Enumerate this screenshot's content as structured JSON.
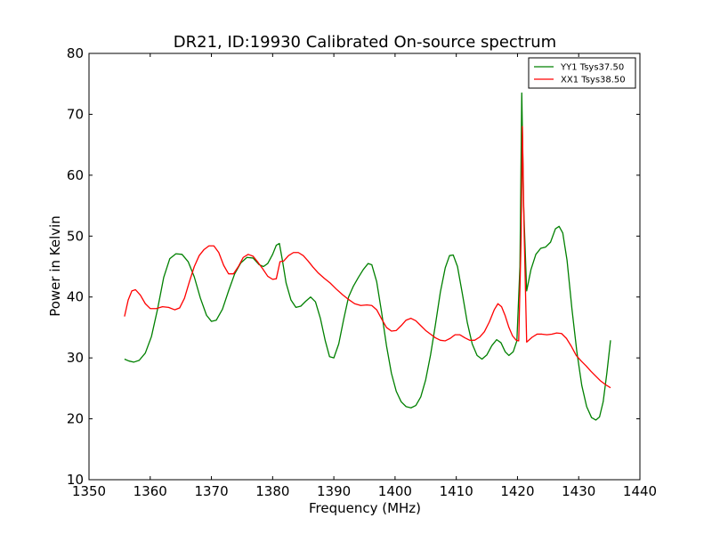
{
  "chart_data": {
    "type": "line",
    "title": "DR21, ID:19930 Calibrated On-source spectrum",
    "xlabel": "Frequency (MHz)",
    "ylabel": "Power in Kelvin",
    "xlim": [
      1350,
      1440
    ],
    "ylim": [
      10,
      80
    ],
    "xticks": [
      1350,
      1360,
      1370,
      1380,
      1390,
      1400,
      1410,
      1420,
      1430,
      1440
    ],
    "yticks": [
      10,
      20,
      30,
      40,
      50,
      60,
      70,
      80
    ],
    "grid": false,
    "legend_position": "top-right",
    "series": [
      {
        "name": "YY1 Tsys37.50",
        "color": "#008000",
        "points": [
          [
            1355.8,
            29.8
          ],
          [
            1356.5,
            29.5
          ],
          [
            1357.3,
            29.3
          ],
          [
            1358.2,
            29.6
          ],
          [
            1359.2,
            30.8
          ],
          [
            1360.2,
            33.5
          ],
          [
            1361.2,
            38.0
          ],
          [
            1362.2,
            43.2
          ],
          [
            1363.2,
            46.3
          ],
          [
            1364.2,
            47.1
          ],
          [
            1365.2,
            47.0
          ],
          [
            1366.2,
            45.8
          ],
          [
            1367.2,
            43.3
          ],
          [
            1368.2,
            39.8
          ],
          [
            1369.2,
            37.0
          ],
          [
            1370.0,
            36.0
          ],
          [
            1370.8,
            36.2
          ],
          [
            1371.8,
            38.0
          ],
          [
            1372.8,
            41.0
          ],
          [
            1373.8,
            43.8
          ],
          [
            1374.8,
            45.6
          ],
          [
            1375.8,
            46.5
          ],
          [
            1376.8,
            46.4
          ],
          [
            1377.8,
            45.3
          ],
          [
            1378.5,
            45.0
          ],
          [
            1379.2,
            45.5
          ],
          [
            1380.0,
            47.0
          ],
          [
            1380.6,
            48.5
          ],
          [
            1381.1,
            48.8
          ],
          [
            1381.6,
            46.0
          ],
          [
            1382.2,
            42.3
          ],
          [
            1383.0,
            39.5
          ],
          [
            1383.8,
            38.3
          ],
          [
            1384.6,
            38.5
          ],
          [
            1385.4,
            39.3
          ],
          [
            1386.2,
            40.0
          ],
          [
            1387.0,
            39.2
          ],
          [
            1387.8,
            36.5
          ],
          [
            1388.6,
            32.8
          ],
          [
            1389.3,
            30.2
          ],
          [
            1390.0,
            30.0
          ],
          [
            1390.8,
            32.3
          ],
          [
            1391.6,
            36.3
          ],
          [
            1392.4,
            40.0
          ],
          [
            1393.2,
            41.8
          ],
          [
            1394.0,
            43.2
          ],
          [
            1394.8,
            44.5
          ],
          [
            1395.6,
            45.5
          ],
          [
            1396.2,
            45.3
          ],
          [
            1397.0,
            42.5
          ],
          [
            1397.8,
            37.5
          ],
          [
            1398.6,
            32.0
          ],
          [
            1399.4,
            27.5
          ],
          [
            1400.2,
            24.5
          ],
          [
            1401.0,
            22.8
          ],
          [
            1401.8,
            22.0
          ],
          [
            1402.6,
            21.8
          ],
          [
            1403.4,
            22.2
          ],
          [
            1404.2,
            23.6
          ],
          [
            1405.0,
            26.4
          ],
          [
            1405.8,
            30.5
          ],
          [
            1406.6,
            35.5
          ],
          [
            1407.4,
            40.8
          ],
          [
            1408.2,
            44.8
          ],
          [
            1408.9,
            46.8
          ],
          [
            1409.5,
            46.9
          ],
          [
            1410.2,
            45.0
          ],
          [
            1411.0,
            40.5
          ],
          [
            1411.8,
            35.8
          ],
          [
            1412.6,
            32.3
          ],
          [
            1413.4,
            30.4
          ],
          [
            1414.2,
            29.8
          ],
          [
            1415.0,
            30.5
          ],
          [
            1415.8,
            32.0
          ],
          [
            1416.6,
            33.0
          ],
          [
            1417.3,
            32.5
          ],
          [
            1418.0,
            31.0
          ],
          [
            1418.6,
            30.4
          ],
          [
            1419.3,
            31.0
          ],
          [
            1419.9,
            32.8
          ],
          [
            1420.4,
            45.0
          ],
          [
            1420.7,
            73.5
          ],
          [
            1421.0,
            55.0
          ],
          [
            1421.5,
            41.0
          ],
          [
            1422.2,
            44.5
          ],
          [
            1423.0,
            47.0
          ],
          [
            1423.8,
            48.0
          ],
          [
            1424.6,
            48.2
          ],
          [
            1425.4,
            49.0
          ],
          [
            1426.2,
            51.2
          ],
          [
            1426.8,
            51.6
          ],
          [
            1427.4,
            50.5
          ],
          [
            1428.1,
            46.0
          ],
          [
            1428.9,
            38.0
          ],
          [
            1429.7,
            31.0
          ],
          [
            1430.5,
            25.5
          ],
          [
            1431.3,
            22.0
          ],
          [
            1432.1,
            20.2
          ],
          [
            1432.8,
            19.8
          ],
          [
            1433.4,
            20.3
          ],
          [
            1434.0,
            22.8
          ],
          [
            1434.6,
            27.5
          ],
          [
            1435.2,
            32.9
          ]
        ]
      },
      {
        "name": "XX1 Tsys38.50",
        "color": "#ff0000",
        "points": [
          [
            1355.8,
            36.8
          ],
          [
            1356.4,
            39.5
          ],
          [
            1357.0,
            41.0
          ],
          [
            1357.6,
            41.2
          ],
          [
            1358.4,
            40.3
          ],
          [
            1359.2,
            38.9
          ],
          [
            1360.0,
            38.1
          ],
          [
            1361.0,
            38.1
          ],
          [
            1362.0,
            38.4
          ],
          [
            1363.0,
            38.3
          ],
          [
            1364.0,
            37.9
          ],
          [
            1364.8,
            38.2
          ],
          [
            1365.6,
            39.8
          ],
          [
            1366.4,
            42.5
          ],
          [
            1367.2,
            45.0
          ],
          [
            1368.0,
            46.8
          ],
          [
            1368.8,
            47.8
          ],
          [
            1369.6,
            48.4
          ],
          [
            1370.4,
            48.4
          ],
          [
            1371.2,
            47.3
          ],
          [
            1372.0,
            45.2
          ],
          [
            1372.8,
            43.8
          ],
          [
            1373.6,
            43.8
          ],
          [
            1374.4,
            45.0
          ],
          [
            1375.2,
            46.5
          ],
          [
            1376.0,
            47.0
          ],
          [
            1376.8,
            46.7
          ],
          [
            1377.6,
            45.7
          ],
          [
            1378.4,
            44.6
          ],
          [
            1379.2,
            43.4
          ],
          [
            1380.0,
            42.9
          ],
          [
            1380.6,
            43.0
          ],
          [
            1381.2,
            45.8
          ],
          [
            1381.8,
            45.9
          ],
          [
            1382.6,
            46.8
          ],
          [
            1383.4,
            47.3
          ],
          [
            1384.2,
            47.3
          ],
          [
            1385.0,
            46.8
          ],
          [
            1385.8,
            45.9
          ],
          [
            1386.6,
            44.9
          ],
          [
            1387.4,
            44.0
          ],
          [
            1388.4,
            43.1
          ],
          [
            1389.4,
            42.3
          ],
          [
            1390.4,
            41.3
          ],
          [
            1391.4,
            40.4
          ],
          [
            1392.4,
            39.6
          ],
          [
            1393.4,
            38.9
          ],
          [
            1394.4,
            38.6
          ],
          [
            1395.4,
            38.7
          ],
          [
            1396.2,
            38.6
          ],
          [
            1397.0,
            37.9
          ],
          [
            1397.8,
            36.4
          ],
          [
            1398.6,
            35.0
          ],
          [
            1399.4,
            34.4
          ],
          [
            1400.2,
            34.5
          ],
          [
            1401.0,
            35.3
          ],
          [
            1401.8,
            36.2
          ],
          [
            1402.6,
            36.5
          ],
          [
            1403.4,
            36.1
          ],
          [
            1404.2,
            35.3
          ],
          [
            1405.0,
            34.5
          ],
          [
            1405.8,
            33.9
          ],
          [
            1406.6,
            33.3
          ],
          [
            1407.4,
            32.9
          ],
          [
            1408.2,
            32.8
          ],
          [
            1409.0,
            33.2
          ],
          [
            1409.8,
            33.8
          ],
          [
            1410.6,
            33.8
          ],
          [
            1411.4,
            33.3
          ],
          [
            1412.2,
            32.9
          ],
          [
            1413.0,
            32.9
          ],
          [
            1413.8,
            33.4
          ],
          [
            1414.6,
            34.3
          ],
          [
            1415.4,
            35.9
          ],
          [
            1416.2,
            37.9
          ],
          [
            1416.8,
            38.9
          ],
          [
            1417.4,
            38.4
          ],
          [
            1418.0,
            36.9
          ],
          [
            1418.6,
            35.0
          ],
          [
            1419.2,
            33.6
          ],
          [
            1419.8,
            32.9
          ],
          [
            1420.2,
            32.8
          ],
          [
            1420.6,
            50.0
          ],
          [
            1420.8,
            68.0
          ],
          [
            1421.1,
            50.0
          ],
          [
            1421.5,
            32.6
          ],
          [
            1422.4,
            33.4
          ],
          [
            1423.2,
            33.9
          ],
          [
            1424.0,
            33.9
          ],
          [
            1424.8,
            33.8
          ],
          [
            1425.6,
            33.9
          ],
          [
            1426.4,
            34.1
          ],
          [
            1427.2,
            34.0
          ],
          [
            1428.0,
            33.2
          ],
          [
            1428.8,
            31.9
          ],
          [
            1429.6,
            30.4
          ],
          [
            1430.4,
            29.5
          ],
          [
            1431.2,
            28.7
          ],
          [
            1432.0,
            27.8
          ],
          [
            1432.8,
            27.0
          ],
          [
            1433.6,
            26.2
          ],
          [
            1434.4,
            25.6
          ],
          [
            1435.2,
            25.1
          ]
        ]
      }
    ]
  }
}
